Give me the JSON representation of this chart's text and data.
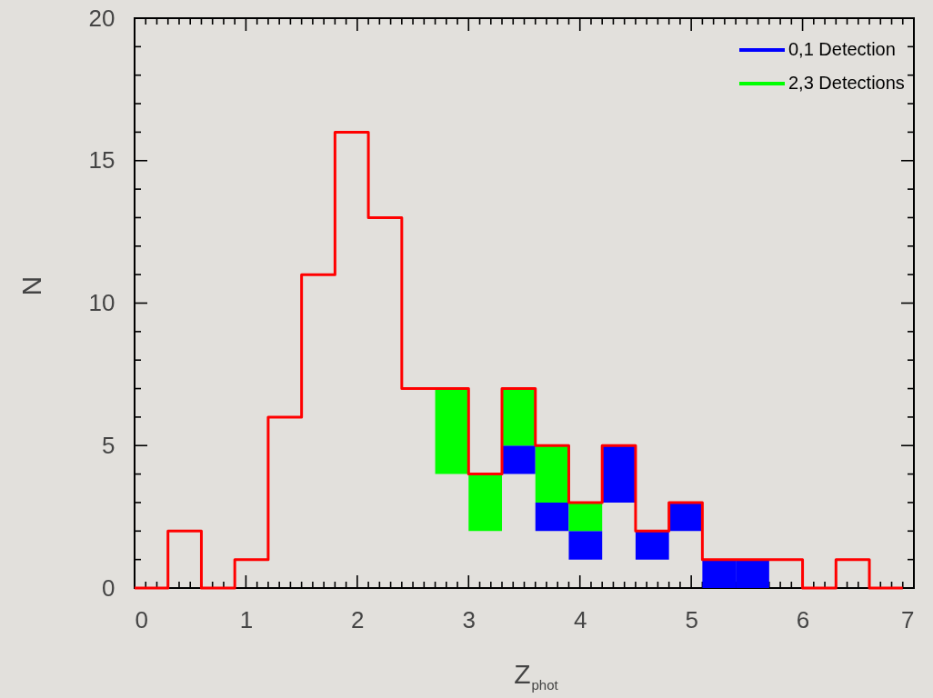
{
  "chart_data": {
    "type": "step",
    "xlabel": "Z$_{phot}$",
    "ylabel": "N",
    "series": [
      {
        "type": "step",
        "color": "#ff0000",
        "x": [
          0,
          0.3,
          0.6,
          0.9,
          1.2,
          1.5,
          1.8,
          2.1,
          2.4,
          2.7,
          3.0,
          3.3,
          3.6,
          3.9,
          4.2,
          4.5,
          4.8,
          5.1,
          5.4,
          5.7,
          6.0,
          6.3,
          6.6,
          6.9
        ],
        "values": [
          0,
          2,
          0,
          1,
          6,
          11,
          16,
          13,
          7,
          7,
          4,
          7,
          5,
          3,
          5,
          2,
          3,
          1,
          1,
          1,
          0,
          1,
          0,
          0
        ]
      },
      {
        "type": "bar",
        "name": "0,1 Detection",
        "color": "#0000ff",
        "x": [
          3.45,
          3.75,
          4.05,
          4.35,
          4.65,
          4.95,
          5.25,
          5.55
        ],
        "base": [
          4,
          2,
          1,
          3,
          1,
          2,
          0,
          0
        ],
        "values": [
          1,
          1,
          1,
          2,
          1,
          1,
          1,
          1
        ]
      },
      {
        "type": "bar",
        "name": "2,3 Detections",
        "color": "#00ff00",
        "x": [
          2.85,
          3.15,
          3.45,
          3.75,
          4.05
        ],
        "base": [
          4,
          2,
          5,
          3,
          2
        ],
        "values": [
          3,
          2,
          2,
          2,
          1
        ]
      }
    ],
    "xlim": [
      0,
      7
    ],
    "xticks": [
      0,
      1,
      2,
      3,
      4,
      5,
      6,
      7
    ],
    "ylim": [
      0,
      20
    ],
    "yticks": [
      0,
      5,
      10,
      15,
      20
    ],
    "legend": "top right"
  }
}
